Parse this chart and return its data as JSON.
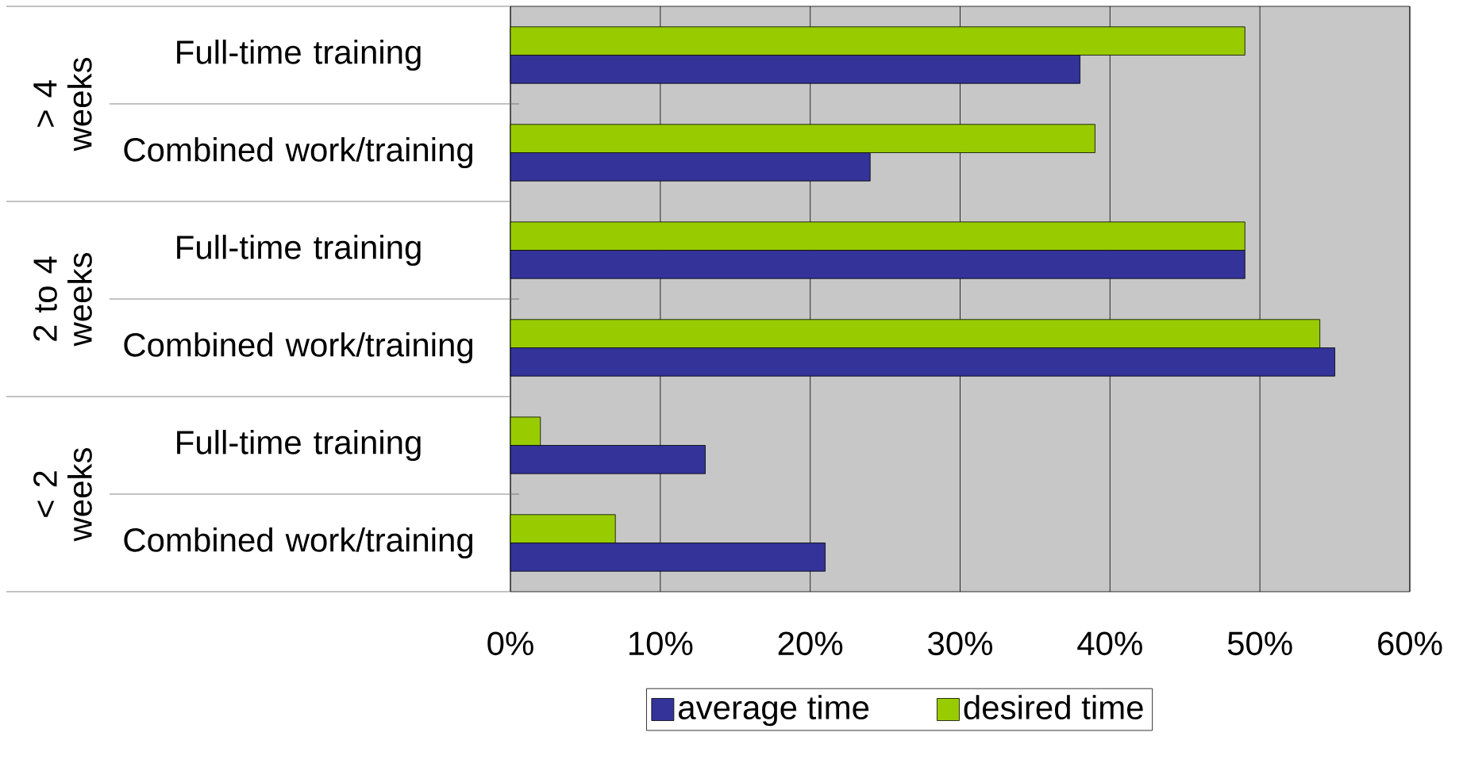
{
  "chart_data": {
    "type": "bar",
    "orientation": "horizontal",
    "categories": [
      "Full-time training",
      "Combined work/training",
      "Full-time training",
      "Combined work/training",
      "Full-time training",
      "Combined work/training"
    ],
    "series": [
      {
        "name": "average time",
        "color": "#333399",
        "values": [
          38,
          24,
          49,
          55,
          13,
          21
        ]
      },
      {
        "name": "desired time",
        "color": "#99cc00",
        "values": [
          49,
          39,
          49,
          54,
          2,
          7
        ]
      }
    ],
    "xlim": [
      0,
      60
    ],
    "xticks": [
      {
        "value": 0,
        "label": "0%"
      },
      {
        "value": 10,
        "label": "10%"
      },
      {
        "value": 20,
        "label": "20%"
      },
      {
        "value": 30,
        "label": "30%"
      },
      {
        "value": 40,
        "label": "40%"
      },
      {
        "value": 50,
        "label": "50%"
      },
      {
        "value": 60,
        "label": "60%"
      }
    ],
    "annotations": [
      "> 4 weeks",
      "2 to 4 weeks",
      "< 2 weeks"
    ],
    "grid": "x",
    "legend": "bottom"
  }
}
